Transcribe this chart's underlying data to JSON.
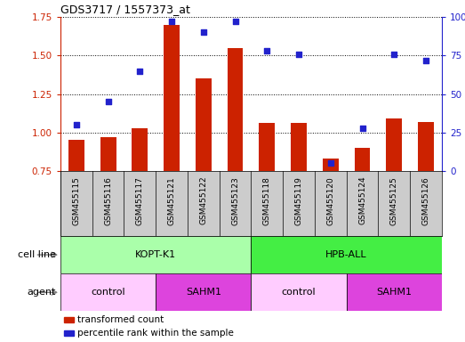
{
  "title": "GDS3717 / 1557373_at",
  "samples": [
    "GSM455115",
    "GSM455116",
    "GSM455117",
    "GSM455121",
    "GSM455122",
    "GSM455123",
    "GSM455118",
    "GSM455119",
    "GSM455120",
    "GSM455124",
    "GSM455125",
    "GSM455126"
  ],
  "bar_values": [
    0.95,
    0.97,
    1.03,
    1.7,
    1.35,
    1.55,
    1.06,
    1.06,
    0.83,
    0.9,
    1.09,
    1.07
  ],
  "dot_values": [
    30,
    45,
    65,
    97,
    90,
    97,
    78,
    76,
    5,
    28,
    76,
    72
  ],
  "bar_color": "#cc2200",
  "dot_color": "#2222cc",
  "ylim_left": [
    0.75,
    1.75
  ],
  "ylim_right": [
    0,
    100
  ],
  "yticks_left": [
    0.75,
    1.0,
    1.25,
    1.5,
    1.75
  ],
  "yticks_right": [
    0,
    25,
    50,
    75,
    100
  ],
  "cell_line_groups": [
    {
      "label": "KOPT-K1",
      "start": 0,
      "end": 6,
      "color": "#aaffaa"
    },
    {
      "label": "HPB-ALL",
      "start": 6,
      "end": 12,
      "color": "#44ee44"
    }
  ],
  "agent_groups": [
    {
      "label": "control",
      "start": 0,
      "end": 3,
      "color": "#ffccff"
    },
    {
      "label": "SAHM1",
      "start": 3,
      "end": 6,
      "color": "#dd44dd"
    },
    {
      "label": "control",
      "start": 6,
      "end": 9,
      "color": "#ffccff"
    },
    {
      "label": "SAHM1",
      "start": 9,
      "end": 12,
      "color": "#dd44dd"
    }
  ],
  "legend_items": [
    {
      "label": "transformed count",
      "color": "#cc2200"
    },
    {
      "label": "percentile rank within the sample",
      "color": "#2222cc"
    }
  ],
  "cell_line_label": "cell line",
  "agent_label": "agent",
  "xtick_bg_color": "#cccccc",
  "background_color": "#ffffff",
  "bar_width": 0.5,
  "tick_label_fontsize": 7.5,
  "row_label_fontsize": 8,
  "title_fontsize": 9
}
